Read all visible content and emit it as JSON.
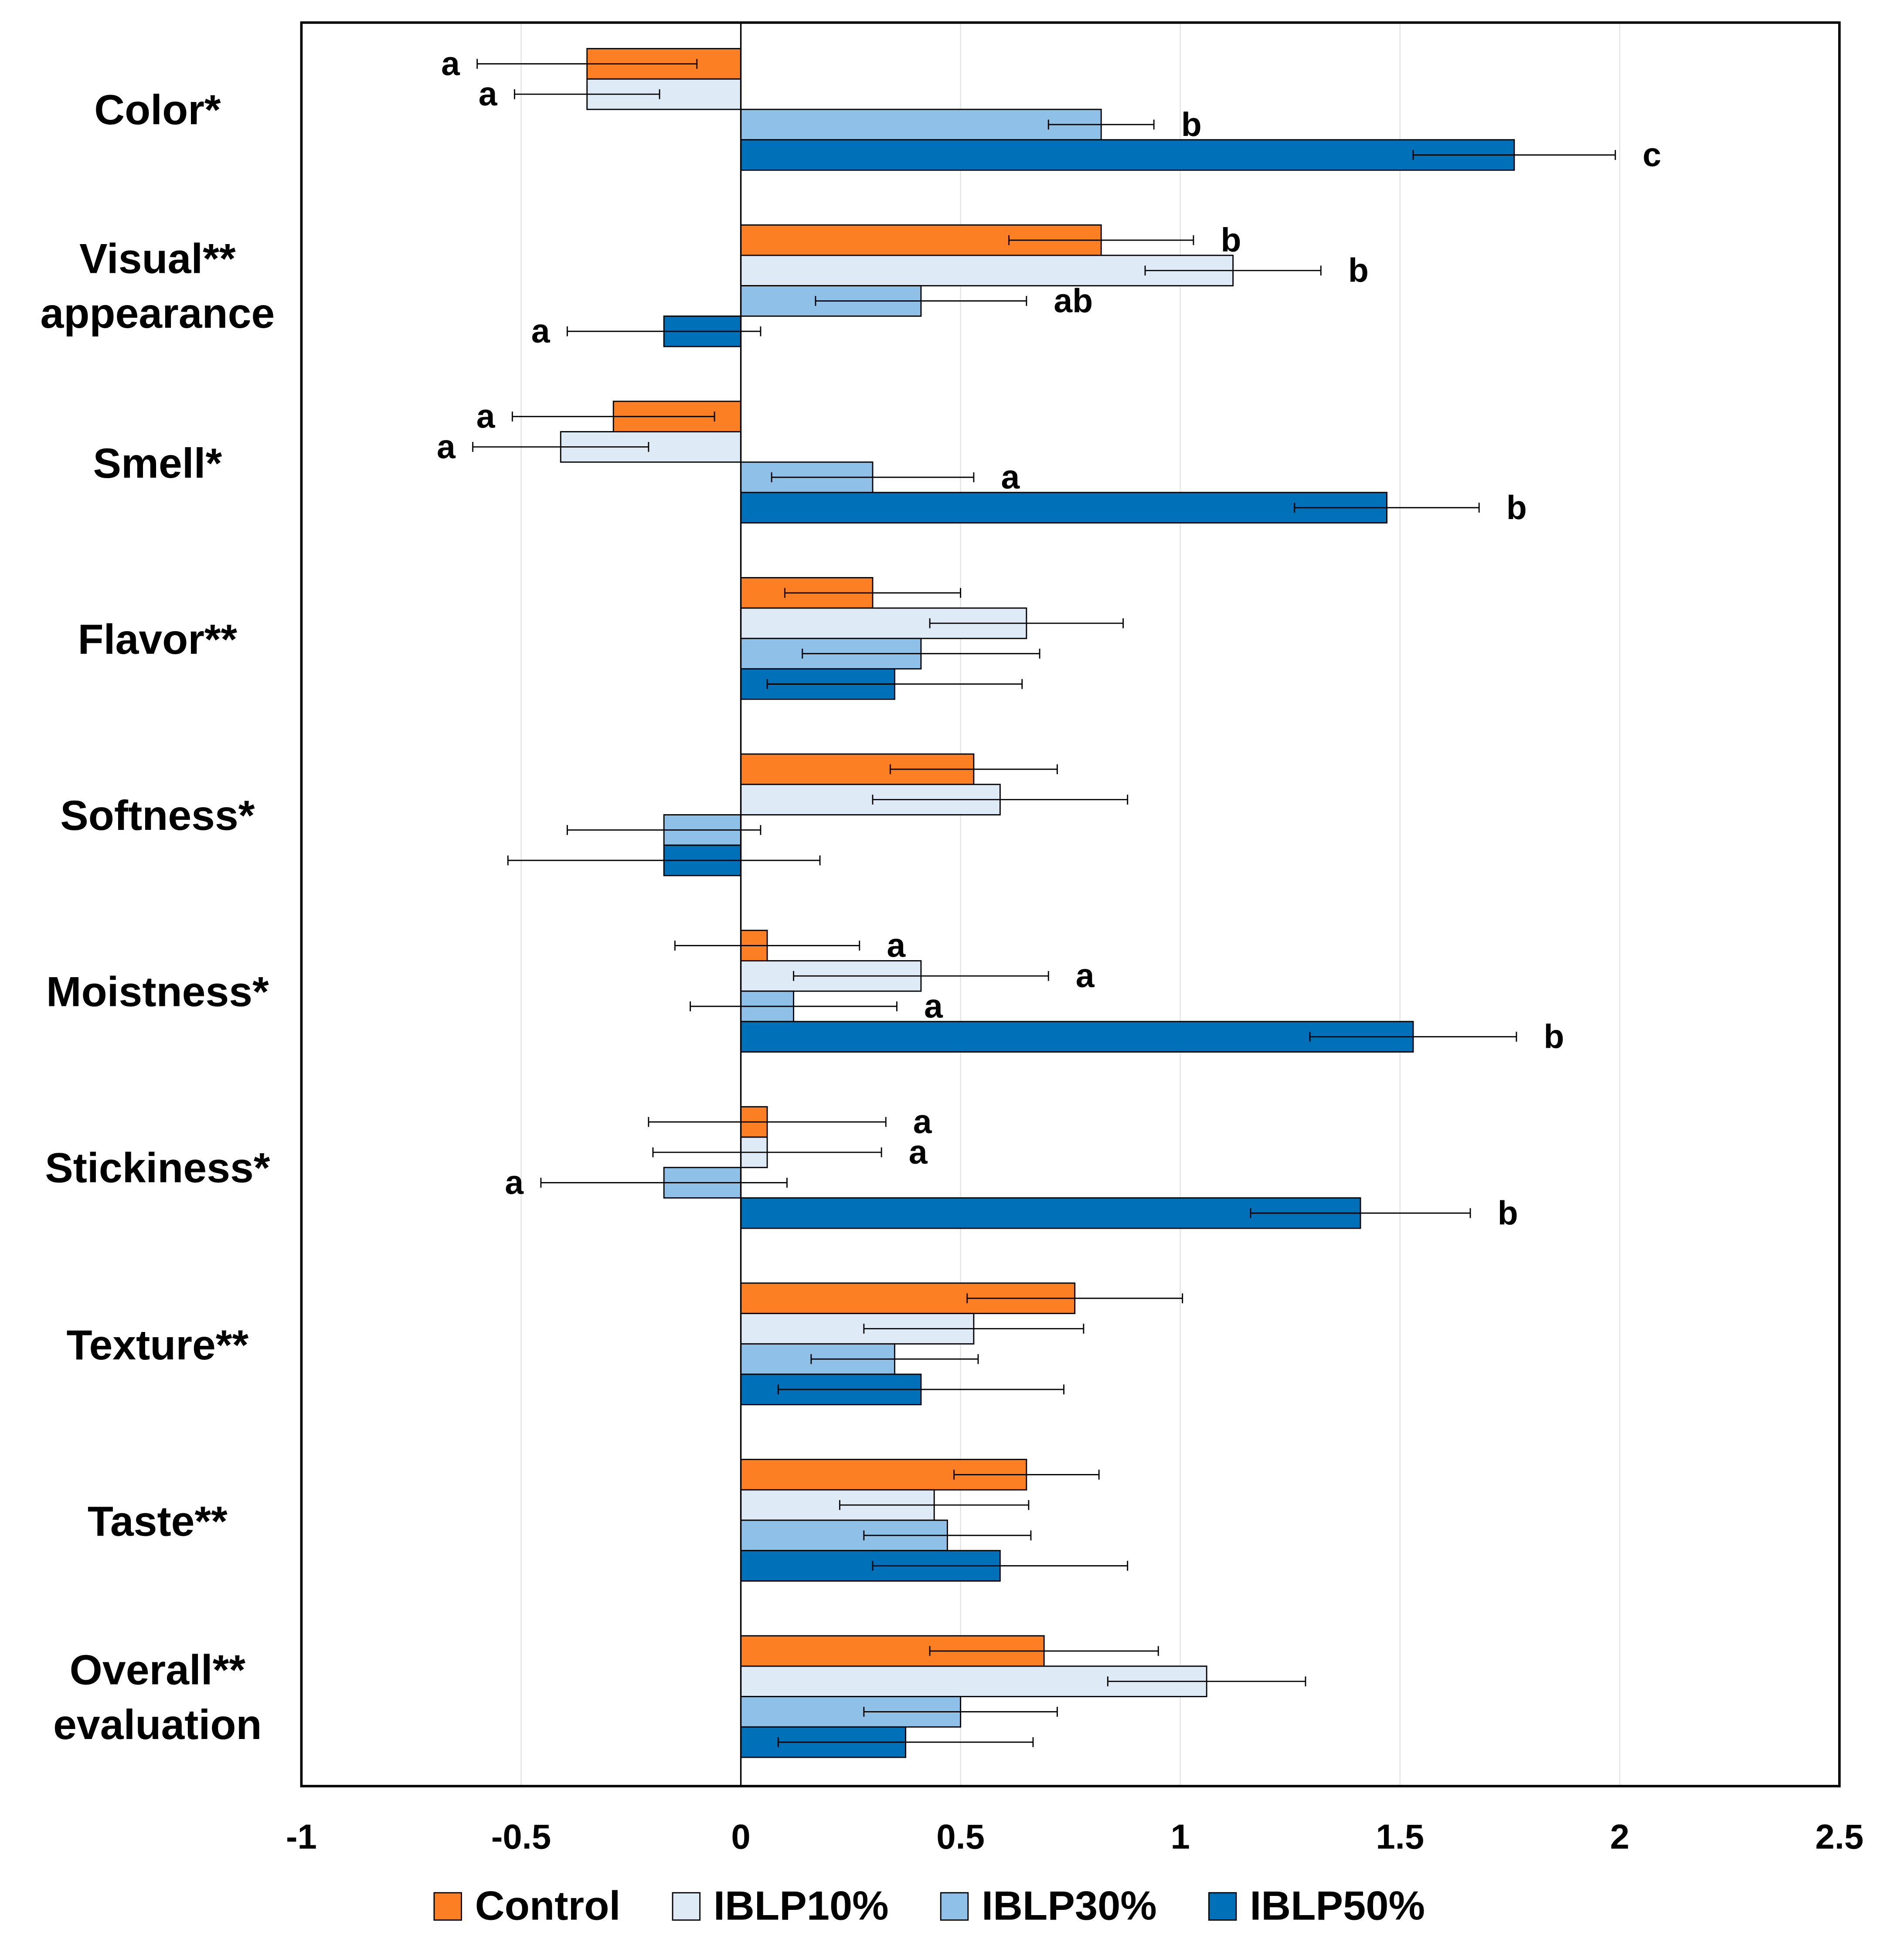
{
  "chart_data": {
    "type": "hbar",
    "categories": [
      "Color*",
      "Visual**\nappearance",
      "Smell*",
      "Flavor**",
      "Softness*",
      "Moistness*",
      "Stickiness*",
      "Texture**",
      "Taste**",
      "Overall**\nevaluation"
    ],
    "series": [
      {
        "name": "Control",
        "color": "#fd7f23",
        "values": [
          -0.35,
          0.82,
          -0.29,
          0.3,
          0.53,
          0.06,
          0.06,
          0.76,
          0.65,
          0.69
        ],
        "errors": [
          0.25,
          0.21,
          0.23,
          0.2,
          0.19,
          0.21,
          0.27,
          0.245,
          0.165,
          0.26
        ],
        "letters": [
          "a",
          "b",
          "a",
          null,
          null,
          "a",
          "a",
          null,
          null,
          null
        ]
      },
      {
        "name": "IBLP10%",
        "color": "#deebf7",
        "values": [
          -0.35,
          1.12,
          -0.41,
          0.65,
          0.59,
          0.41,
          0.06,
          0.53,
          0.44,
          1.06
        ],
        "errors": [
          0.165,
          0.2,
          0.2,
          0.22,
          0.29,
          0.29,
          0.26,
          0.25,
          0.215,
          0.225
        ],
        "letters": [
          "a",
          "b",
          "a",
          null,
          null,
          "a",
          "a",
          null,
          null,
          null
        ]
      },
      {
        "name": "IBLP30%",
        "color": "#8fc1e8",
        "values": [
          0.82,
          0.41,
          0.3,
          0.41,
          -0.175,
          0.12,
          -0.175,
          0.35,
          0.47,
          0.5
        ],
        "errors": [
          0.12,
          0.24,
          0.23,
          0.27,
          0.22,
          0.235,
          0.28,
          0.19,
          0.19,
          0.22
        ],
        "letters": [
          "b",
          "ab",
          "a",
          null,
          null,
          "a",
          "a",
          null,
          null,
          null
        ]
      },
      {
        "name": "IBLP50%",
        "color": "#0070b8",
        "values": [
          1.76,
          -0.175,
          1.47,
          0.35,
          -0.175,
          1.53,
          1.41,
          0.41,
          0.59,
          0.375
        ],
        "errors": [
          0.23,
          0.22,
          0.21,
          0.29,
          0.355,
          0.235,
          0.25,
          0.325,
          0.29,
          0.29
        ],
        "letters": [
          "c",
          "a",
          "b",
          null,
          null,
          "b",
          "b",
          null,
          null,
          null
        ]
      }
    ],
    "xlim": [
      -1,
      2.5
    ],
    "xticks": [
      -1,
      -0.5,
      0,
      0.5,
      1,
      1.5,
      2,
      2.5
    ],
    "grid": true,
    "legend": "bottom"
  }
}
